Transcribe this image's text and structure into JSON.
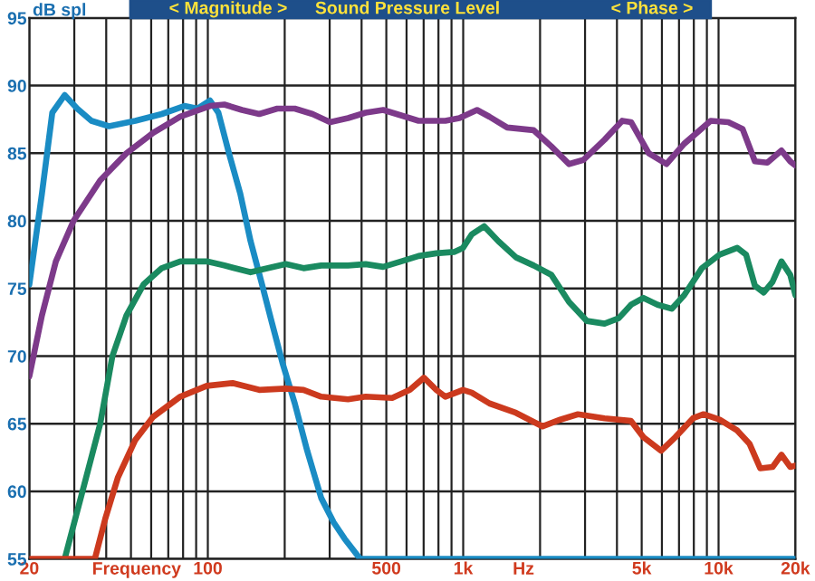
{
  "chart_data": {
    "type": "line",
    "title": "Sound Pressure Level",
    "ylabel": "dB spl",
    "xlabel": "Frequency",
    "annotations": [
      "< Magnitude >",
      "< Phase >",
      "Hz"
    ],
    "log": "x",
    "grid": true,
    "line_style": "solid",
    "marker": "none",
    "xlim": [
      20,
      20000
    ],
    "ylim": [
      55,
      95
    ],
    "xticks": [
      20,
      100,
      500,
      {
        "value": 1000,
        "label": "1k"
      },
      {
        "value": 5000,
        "label": "5k"
      },
      {
        "value": 10000,
        "label": "10k"
      },
      {
        "value": 20000,
        "label": "20k"
      }
    ],
    "yticks": [
      55,
      60,
      65,
      70,
      75,
      80,
      85,
      90,
      95
    ],
    "series": [
      {
        "color": "#1a8cc4",
        "x": [
          20,
          22.4,
          24.6,
          27.5,
          30.8,
          35,
          41,
          52,
          66,
          81,
          91,
          102,
          110,
          121,
          134,
          147,
          162,
          178,
          196,
          219,
          245,
          278,
          311,
          343,
          395,
          20000
        ],
        "values": [
          75.3,
          82,
          88,
          89.3,
          88.3,
          87.4,
          87.0,
          87.4,
          87.9,
          88.5,
          88.3,
          88.9,
          88,
          85,
          82,
          78.5,
          75.5,
          72.5,
          69.5,
          66.5,
          63,
          59.5,
          57.7,
          56.5,
          55,
          55
        ]
      },
      {
        "color": "#7d3a8a",
        "x": [
          20,
          22.4,
          25.4,
          29.8,
          37.9,
          48,
          61,
          78,
          102,
          116,
          136,
          159,
          187,
          219,
          257,
          301,
          354,
          415,
          486,
          571,
          669,
          851,
          966,
          1133,
          1267,
          1486,
          1889,
          2216,
          2598,
          2952,
          3577,
          4195,
          4543,
          5330,
          6250,
          7332,
          9314,
          10924,
          12412,
          13878,
          15520,
          17632,
          19094,
          20000
        ],
        "values": [
          68.5,
          73,
          77,
          80,
          83,
          85,
          86.5,
          87.7,
          88.5,
          88.6,
          88.2,
          87.9,
          88.3,
          88.3,
          87.9,
          87.3,
          87.6,
          88,
          88.2,
          87.8,
          87.4,
          87.4,
          87.6,
          88.2,
          87.7,
          86.9,
          86.7,
          85.5,
          84.2,
          84.5,
          86,
          87.4,
          87.3,
          85,
          84.2,
          85.7,
          87.4,
          87.3,
          86.8,
          84.4,
          84.3,
          85.2,
          84.4,
          84.1
        ]
      },
      {
        "color": "#1a8a60",
        "x": [
          27.5,
          32.3,
          37.9,
          42.3,
          48,
          56,
          66,
          78,
          99,
          116,
          147,
          172,
          202,
          237,
          278,
          354,
          415,
          486,
          571,
          669,
          785,
          921,
          998,
          1080,
          1208,
          1373,
          1610,
          1889,
          2216,
          2598,
          3048,
          3577,
          4064,
          4543,
          5080,
          5771,
          6556,
          7332,
          8600,
          10088,
          11832,
          12816,
          13878,
          15030,
          16278,
          17632,
          19094,
          20000
        ],
        "values": [
          55,
          60,
          65,
          70,
          73,
          75.3,
          76.5,
          77,
          77,
          76.7,
          76.2,
          76.5,
          76.8,
          76.5,
          76.7,
          76.7,
          76.8,
          76.6,
          77,
          77.4,
          77.6,
          77.7,
          78,
          79,
          79.6,
          78.5,
          77.3,
          76.7,
          76,
          74,
          72.6,
          72.4,
          72.8,
          73.8,
          74.3,
          73.8,
          73.5,
          74.5,
          76.5,
          77.5,
          78,
          77.5,
          75.2,
          74.7,
          75.5,
          77,
          76,
          74.5
        ]
      },
      {
        "color": "#cc3a1e",
        "x": [
          20,
          36.1,
          39.7,
          44.4,
          52,
          61,
          78,
          99,
          125,
          159,
          202,
          237,
          278,
          354,
          415,
          527,
          618,
          702,
          785,
          851,
          998,
          1080,
          1267,
          1610,
          2046,
          2399,
          2814,
          3577,
          4543,
          5080,
          5958,
          6770,
          7941,
          8738,
          10088,
          11832,
          13232,
          14558,
          16278,
          17632,
          19094,
          20000
        ],
        "values": [
          55,
          55,
          58,
          61,
          63.8,
          65.5,
          67,
          67.8,
          68,
          67.5,
          67.6,
          67.5,
          67,
          66.8,
          67,
          66.9,
          67.5,
          68.4,
          67.5,
          67,
          67.5,
          67.3,
          66.5,
          65.8,
          64.8,
          65.3,
          65.7,
          65.4,
          65.2,
          64,
          63,
          64,
          65.4,
          65.7,
          65.3,
          64.5,
          63.5,
          61.7,
          61.8,
          62.7,
          61.8,
          61.9
        ]
      }
    ]
  }
}
